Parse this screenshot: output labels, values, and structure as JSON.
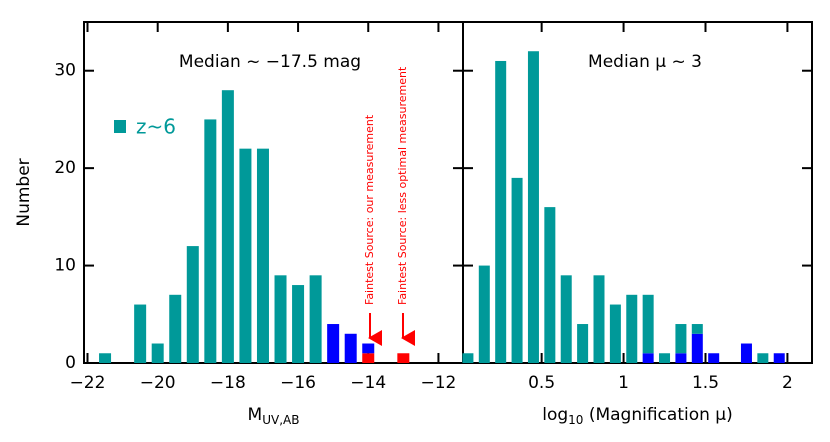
{
  "chart_data": [
    {
      "type": "bar",
      "ylabel": "Number",
      "xlabel": {
        "main": "M",
        "sub": "UV,AB"
      },
      "x": [
        -21.5,
        -20.5,
        -20,
        -19.5,
        -19,
        -18.5,
        -18,
        -17.5,
        -17,
        -16.5,
        -16,
        -15.5,
        -15,
        -14.5,
        -14,
        -13
      ],
      "series": [
        {
          "color": "#ff0000",
          "values": [
            null,
            null,
            null,
            null,
            null,
            null,
            null,
            null,
            null,
            null,
            null,
            null,
            null,
            null,
            1,
            1
          ]
        },
        {
          "color": "#0000ff",
          "values": [
            null,
            null,
            null,
            null,
            null,
            null,
            null,
            null,
            null,
            null,
            null,
            null,
            4,
            3,
            1,
            null
          ]
        },
        {
          "name": "z~6",
          "color": "#009999",
          "values": [
            1,
            6,
            2,
            7,
            12,
            25,
            28,
            22,
            22,
            9,
            8,
            9,
            null,
            null,
            null,
            null
          ]
        }
      ],
      "xlim": [
        -22.1,
        -11.3
      ],
      "xticks": [
        {
          "value": -22,
          "label": "−22"
        },
        {
          "value": -20,
          "label": "−20"
        },
        {
          "value": -18,
          "label": "−18"
        },
        {
          "value": -16,
          "label": "−16"
        },
        {
          "value": -14,
          "label": "−14"
        },
        {
          "value": -12,
          "label": "−12"
        }
      ],
      "ylim": [
        0,
        35
      ],
      "yticks": [
        0,
        10,
        20,
        30
      ],
      "legend": "upper left",
      "annotations": [
        "Median ~ −17.5 mag",
        "Faintest Source: our measurement",
        "Faintest Source: less optimal measurement"
      ]
    },
    {
      "type": "bar",
      "xlabel": {
        "main": "log",
        "sub": "10",
        "rest": " (Magnification μ)"
      },
      "x": [
        0.05,
        0.15,
        0.25,
        0.35,
        0.45,
        0.55,
        0.65,
        0.75,
        0.85,
        0.95,
        1.05,
        1.15,
        1.25,
        1.35,
        1.45,
        1.55,
        1.75,
        1.85,
        1.95
      ],
      "series": [
        {
          "color": "#0000ff",
          "values": [
            null,
            null,
            null,
            null,
            null,
            null,
            null,
            null,
            null,
            null,
            null,
            1,
            null,
            1,
            3,
            1,
            2,
            null,
            1
          ]
        },
        {
          "color": "#009999",
          "values": [
            1,
            10,
            31,
            19,
            32,
            16,
            9,
            4,
            9,
            6,
            7,
            6,
            1,
            3,
            1,
            null,
            null,
            1,
            null
          ]
        }
      ],
      "xlim": [
        0.02,
        2.15
      ],
      "xticks": [
        0.5,
        1,
        1.5,
        2
      ],
      "ylim": [
        0,
        35
      ],
      "yticks": [
        0,
        10,
        20,
        30
      ],
      "annotations": [
        "Median μ ~ 3"
      ]
    }
  ]
}
